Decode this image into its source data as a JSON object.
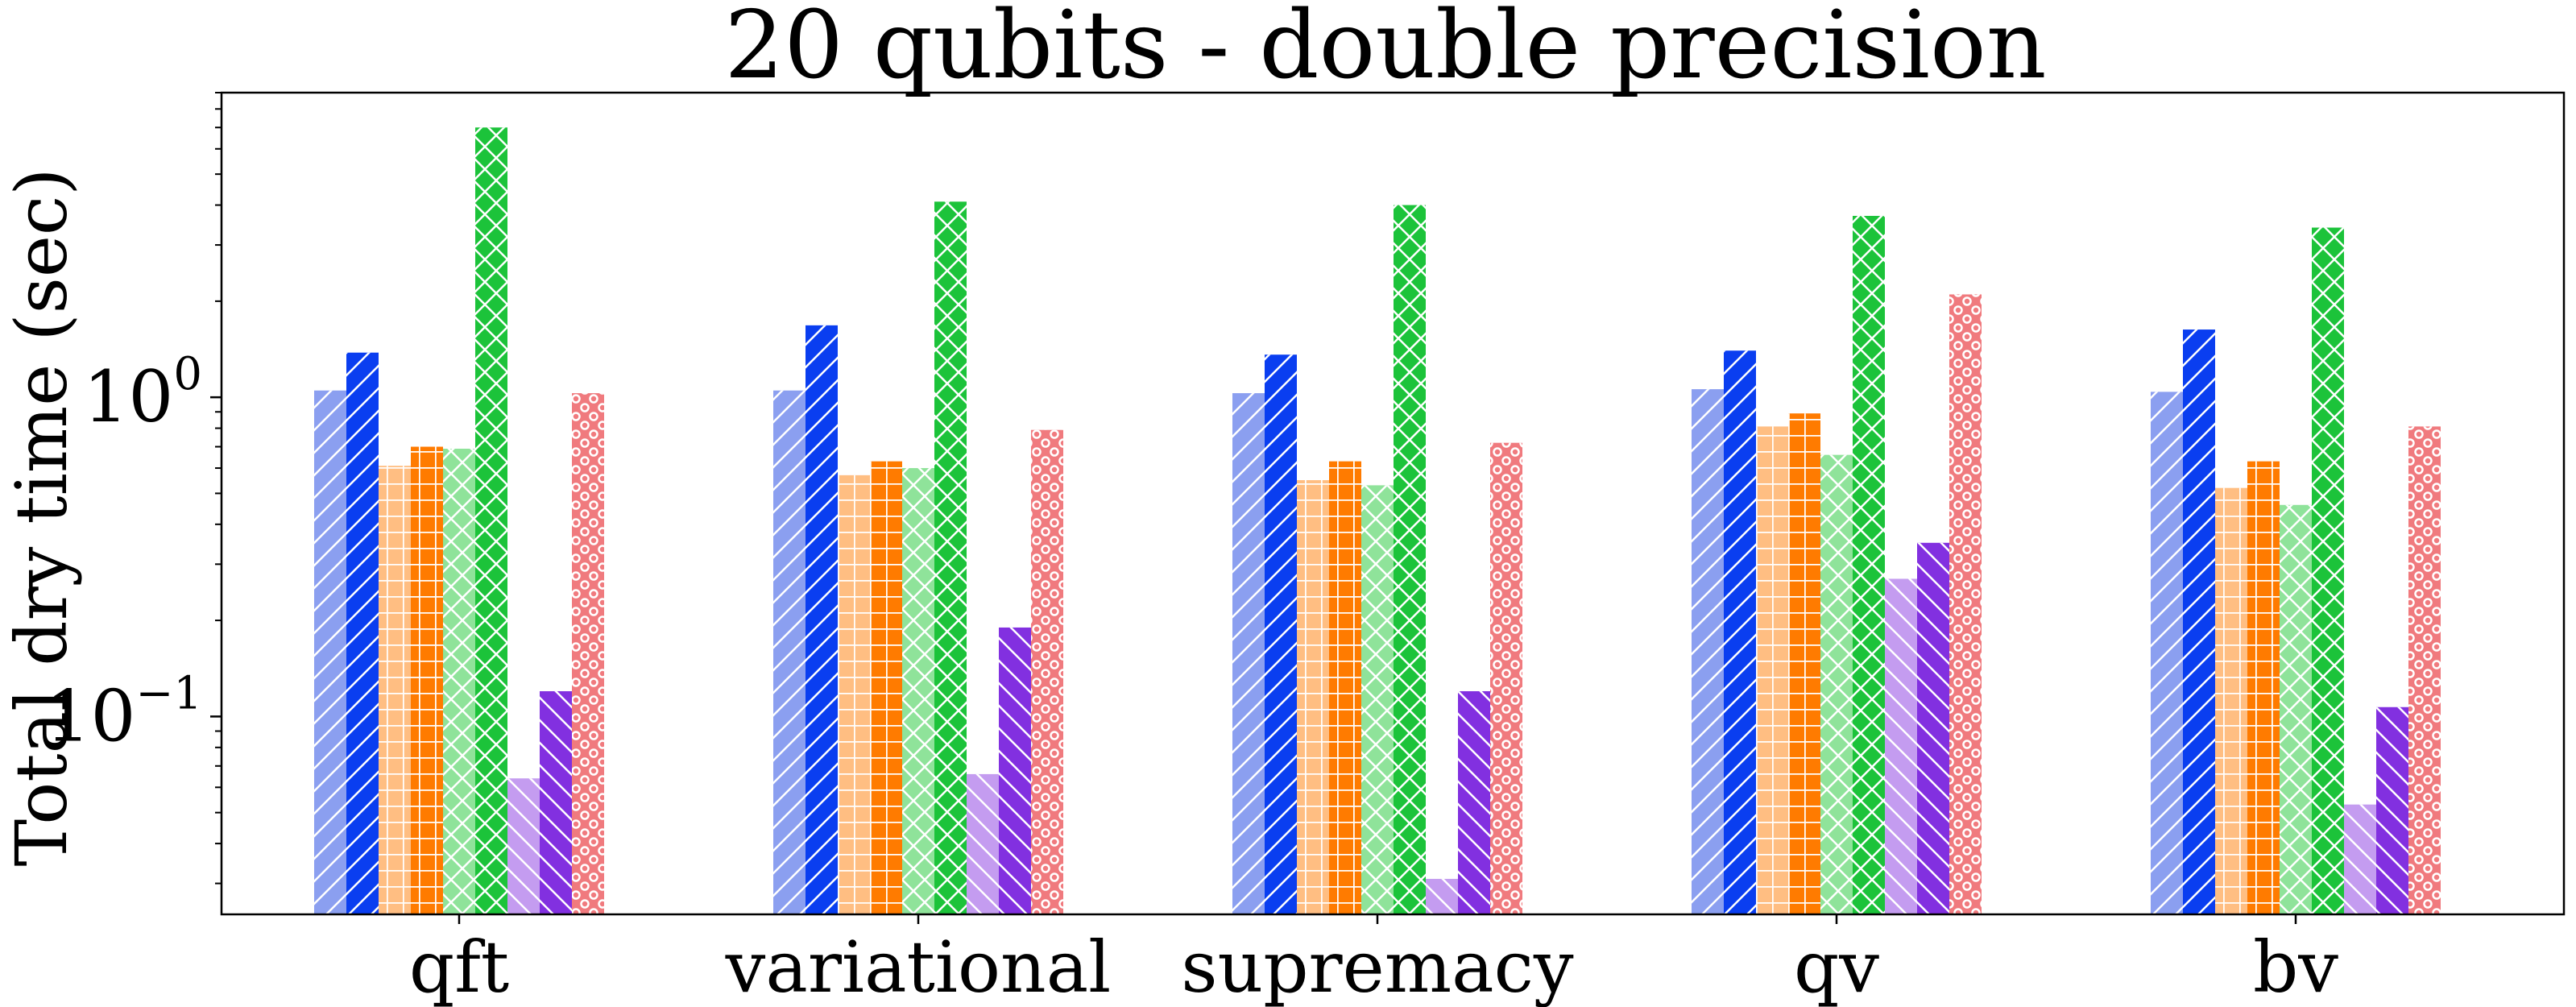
{
  "chart_data": {
    "type": "bar",
    "title": "20 qubits - double precision",
    "ylabel": "Total dry time (sec)",
    "xlabel": "",
    "yscale": "log",
    "ylim": [
      0.024,
      9.0
    ],
    "yticks": [
      {
        "value": 0.1,
        "base": "10",
        "exp": "−1"
      },
      {
        "value": 1.0,
        "base": "10",
        "exp": "0"
      }
    ],
    "categories": [
      "qft",
      "variational",
      "supremacy",
      "qv",
      "bv"
    ],
    "grid": false,
    "legend": "none",
    "series": [
      {
        "color": "#8b9ff0",
        "hatch": "diag-fwd",
        "values": [
          1.05,
          1.05,
          1.03,
          1.06,
          1.04
        ]
      },
      {
        "color": "#0a3ef0",
        "hatch": "diag-fwd",
        "values": [
          1.38,
          1.68,
          1.36,
          1.4,
          1.63
        ]
      },
      {
        "color": "#ffbe82",
        "hatch": "grid",
        "values": [
          0.61,
          0.57,
          0.55,
          0.81,
          0.52
        ]
      },
      {
        "color": "#ff7b00",
        "hatch": "grid",
        "values": [
          0.7,
          0.63,
          0.63,
          0.89,
          0.63
        ]
      },
      {
        "color": "#8fe39a",
        "hatch": "cross",
        "values": [
          0.69,
          0.6,
          0.53,
          0.66,
          0.46
        ]
      },
      {
        "color": "#1cc33a",
        "hatch": "cross",
        "values": [
          7.0,
          4.1,
          4.0,
          3.7,
          3.4
        ]
      },
      {
        "color": "#c49cf0",
        "hatch": "diag-back",
        "values": [
          0.064,
          0.066,
          0.031,
          0.27,
          0.053
        ]
      },
      {
        "color": "#8230e0",
        "hatch": "diag-back",
        "values": [
          0.12,
          0.19,
          0.12,
          0.35,
          0.107
        ]
      },
      {
        "color": "#f07a7e",
        "hatch": "dots",
        "values": [
          1.03,
          0.79,
          0.72,
          2.1,
          0.81
        ]
      }
    ]
  }
}
